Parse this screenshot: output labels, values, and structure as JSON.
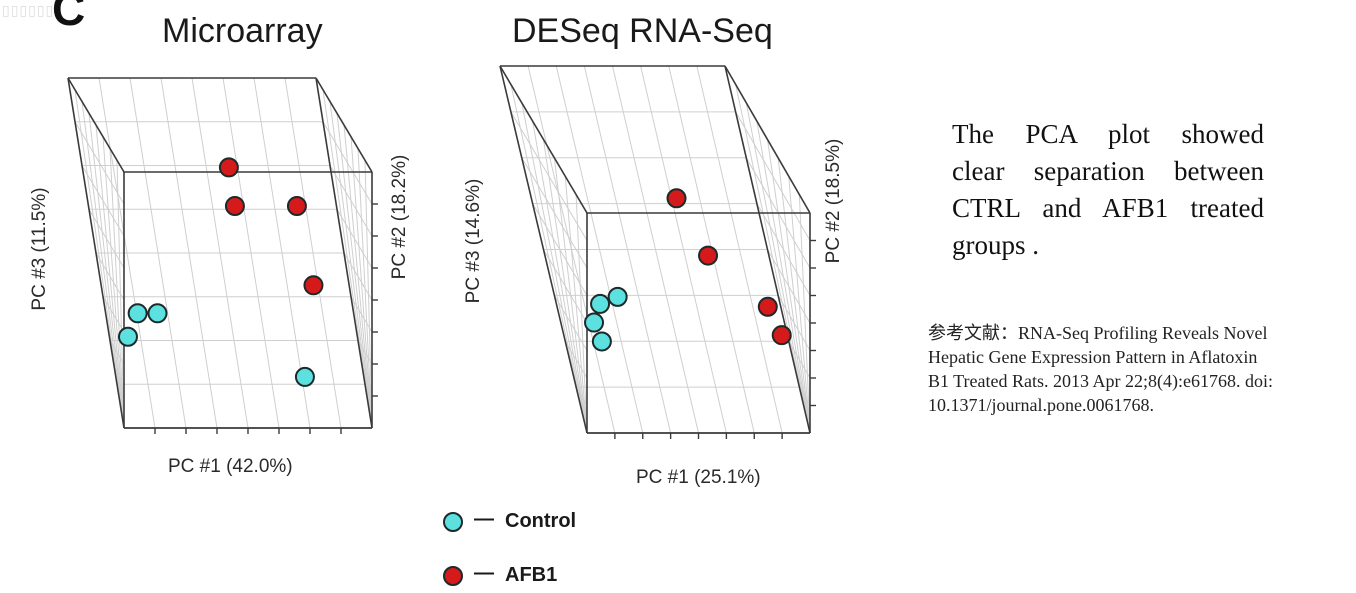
{
  "panel_letter": "C",
  "legend": {
    "control_label": "Control",
    "afb1_label": "AFB1",
    "dash": "—",
    "colors": {
      "control": "#5ce0e0",
      "afb1": "#d41a1a",
      "outline": "#1c2a2a"
    }
  },
  "note": {
    "lines": [
      "The PCA plot showed",
      "clear separation between",
      "CTRL and AFB1 treated",
      "groups ."
    ]
  },
  "citation": {
    "lines": [
      "参考文献：RNA-Seq Profiling Reveals Novel",
      "Hepatic Gene Expression Pattern in Aflatoxin",
      "B1 Treated Rats. 2013 Apr 22;8(4):e61768. doi:",
      "10.1371/journal.pone.0061768."
    ]
  },
  "chart_data": [
    {
      "type": "scatter",
      "projection": "3d",
      "title": "Microarray",
      "xlabel": "PC #1 (42.0%)",
      "ylabel": "PC #2 (18.2%)",
      "zlabel": "PC #3 (11.5%)",
      "xlim": [
        0,
        1
      ],
      "ylim": [
        0,
        1
      ],
      "zlim": [
        0,
        1
      ],
      "grid": true,
      "series": [
        {
          "name": "Control",
          "points": [
            [
              0.06,
              0.95,
              0.44
            ],
            [
              0.14,
              0.95,
              0.44
            ],
            [
              0.02,
              0.95,
              0.35
            ],
            [
              0.76,
              0.1,
              0.15
            ]
          ]
        },
        {
          "name": "AFB1",
          "points": [
            [
              0.52,
              0.5,
              0.86
            ],
            [
              0.55,
              0.35,
              0.7
            ],
            [
              0.8,
              0.35,
              0.7
            ],
            [
              0.83,
              0.35,
              0.45
            ]
          ]
        }
      ]
    },
    {
      "type": "scatter",
      "projection": "3d",
      "title": "DESeq RNA-Seq",
      "xlabel": "PC #1 (25.1%)",
      "ylabel": "PC #2 (18.5%)",
      "zlabel": "PC #3 (14.6%)",
      "xlim": [
        0,
        1
      ],
      "ylim": [
        0,
        1
      ],
      "zlim": [
        0,
        1
      ],
      "grid": true,
      "series": [
        {
          "name": "Control",
          "points": [
            [
              0.08,
              0.9,
              0.55
            ],
            [
              0.16,
              0.9,
              0.58
            ],
            [
              0.12,
              0.35,
              0.35
            ],
            [
              0.14,
              0.35,
              0.29
            ]
          ]
        },
        {
          "name": "AFB1",
          "points": [
            [
              0.44,
              0.9,
              1.0
            ],
            [
              0.65,
              0.55,
              0.62
            ],
            [
              0.91,
              0.35,
              0.4
            ],
            [
              0.95,
              0.35,
              0.31
            ]
          ]
        }
      ]
    }
  ]
}
